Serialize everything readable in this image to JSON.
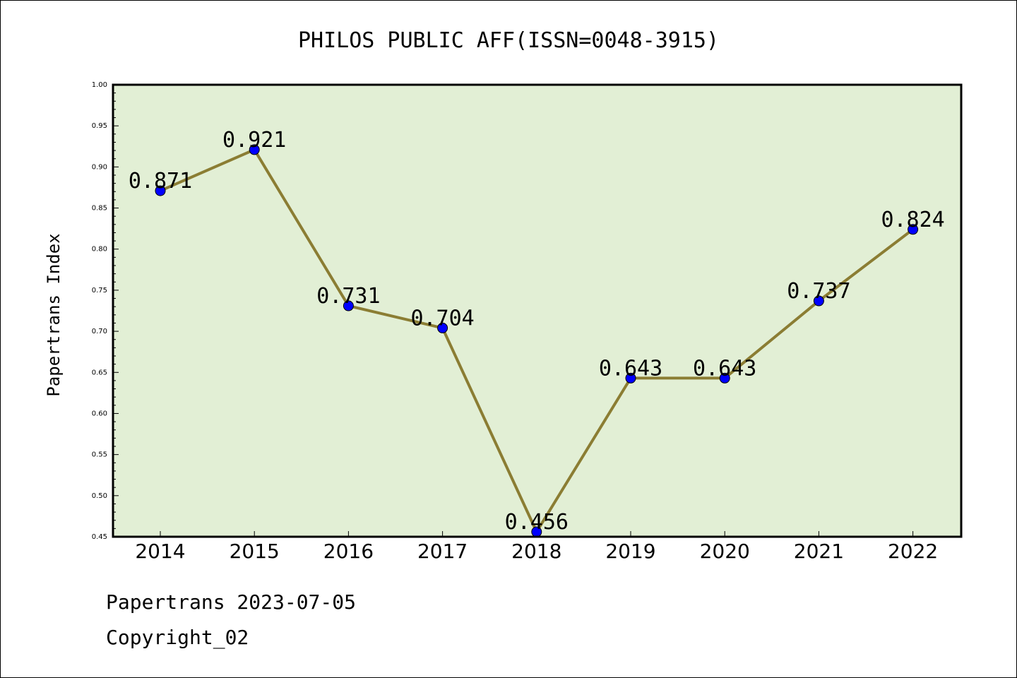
{
  "chart_data": {
    "type": "line",
    "title": "PHILOS PUBLIC AFF(ISSN=0048-3915)",
    "xlabel": "",
    "ylabel": "Papertrans Index",
    "categories": [
      "2014",
      "2015",
      "2016",
      "2017",
      "2018",
      "2019",
      "2020",
      "2021",
      "2022"
    ],
    "values": [
      0.871,
      0.921,
      0.731,
      0.704,
      0.456,
      0.643,
      0.643,
      0.737,
      0.824
    ],
    "data_labels": [
      "0.871",
      "0.921",
      "0.731",
      "0.704",
      "0.456",
      "0.643",
      "0.643",
      "0.737",
      "0.824"
    ],
    "ylim": [
      0.45,
      1.0
    ],
    "yticks": [
      "0.45",
      "0.50",
      "0.55",
      "0.60",
      "0.65",
      "0.70",
      "0.75",
      "0.80",
      "0.85",
      "0.90",
      "0.95",
      "1.00"
    ],
    "grid": false,
    "colors": {
      "plot_background": "#e2efd5",
      "line": "#8b7d33",
      "marker": "#0000ff"
    }
  },
  "footer": {
    "line1": "Papertrans 2023-07-05",
    "line2": "Copyright_02"
  }
}
